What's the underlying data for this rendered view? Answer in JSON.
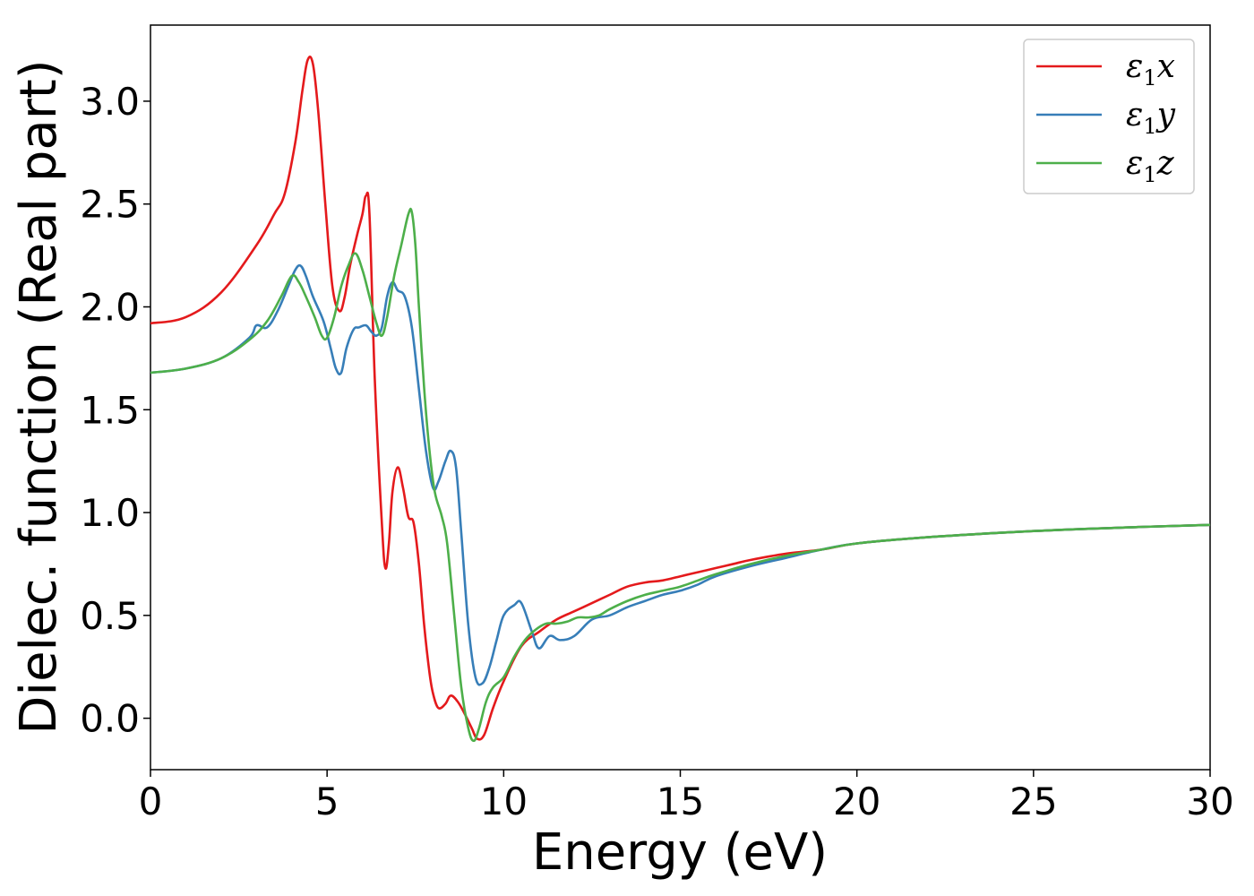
{
  "chart_data": {
    "type": "line",
    "title": "",
    "xlabel": "Energy (eV)",
    "ylabel": "Dielec. function (Real part)",
    "xlim": [
      0,
      30
    ],
    "ylim": [
      -0.25,
      3.37
    ],
    "xticks": [
      0,
      5,
      10,
      15,
      20,
      25,
      30
    ],
    "xtick_labels": [
      "0",
      "5",
      "10",
      "15",
      "20",
      "25",
      "30"
    ],
    "yticks": [
      0.0,
      0.5,
      1.0,
      1.5,
      2.0,
      2.5,
      3.0
    ],
    "ytick_labels": [
      "0.0",
      "0.5",
      "1.0",
      "1.5",
      "2.0",
      "2.5",
      "3.0"
    ],
    "grid": false,
    "legend_position": "top-right",
    "series": [
      {
        "name": "ε₁x",
        "legend": {
          "base": "ε",
          "sub": "1",
          "var": "x"
        },
        "color": "#e41a1c",
        "x": [
          0,
          1,
          2,
          3,
          3.5,
          3.8,
          4.1,
          4.3,
          4.45,
          4.6,
          4.75,
          4.95,
          5.15,
          5.35,
          5.5,
          5.65,
          5.85,
          6.0,
          6.1,
          6.2,
          6.35,
          6.55,
          6.65,
          6.75,
          6.85,
          7.0,
          7.15,
          7.3,
          7.45,
          7.6,
          7.75,
          7.9,
          8.0,
          8.15,
          8.35,
          8.5,
          8.7,
          8.9,
          9.1,
          9.25,
          9.45,
          9.7,
          10.0,
          10.5,
          11.0,
          11.5,
          12.0,
          12.5,
          13.0,
          13.5,
          14.0,
          14.5,
          15.0,
          15.5,
          16.0,
          16.5,
          17.0,
          18.0,
          19.0,
          20.0,
          22.0,
          25.0,
          28.0,
          30.0
        ],
        "y": [
          1.92,
          1.95,
          2.07,
          2.3,
          2.45,
          2.55,
          2.8,
          3.05,
          3.2,
          3.18,
          2.95,
          2.5,
          2.1,
          1.98,
          2.05,
          2.2,
          2.35,
          2.45,
          2.54,
          2.45,
          1.65,
          0.95,
          0.73,
          0.85,
          1.1,
          1.22,
          1.12,
          0.98,
          0.95,
          0.75,
          0.45,
          0.22,
          0.12,
          0.05,
          0.07,
          0.11,
          0.08,
          0.02,
          -0.05,
          -0.1,
          -0.08,
          0.05,
          0.18,
          0.35,
          0.42,
          0.48,
          0.52,
          0.56,
          0.6,
          0.64,
          0.66,
          0.67,
          0.69,
          0.71,
          0.73,
          0.75,
          0.77,
          0.8,
          0.82,
          0.85,
          0.88,
          0.91,
          0.93,
          0.94
        ]
      },
      {
        "name": "ε₁y",
        "legend": {
          "base": "ε",
          "sub": "1",
          "var": "y"
        },
        "color": "#377eb8",
        "x": [
          0,
          1,
          2,
          2.8,
          3.0,
          3.3,
          3.6,
          3.9,
          4.1,
          4.25,
          4.4,
          4.6,
          4.9,
          5.1,
          5.25,
          5.4,
          5.55,
          5.75,
          5.9,
          6.1,
          6.25,
          6.4,
          6.55,
          6.7,
          6.85,
          7.0,
          7.2,
          7.4,
          7.6,
          7.8,
          8.0,
          8.15,
          8.35,
          8.5,
          8.65,
          8.8,
          9.0,
          9.2,
          9.4,
          9.6,
          9.8,
          10.0,
          10.3,
          10.5,
          10.8,
          11.0,
          11.3,
          11.6,
          12.0,
          12.5,
          13.0,
          13.5,
          14.0,
          14.5,
          15.0,
          15.5,
          16.0,
          17.0,
          18.0,
          19.0,
          20.0,
          22.0,
          25.0,
          28.0,
          30.0
        ],
        "y": [
          1.68,
          1.7,
          1.75,
          1.85,
          1.91,
          1.9,
          1.98,
          2.1,
          2.18,
          2.2,
          2.15,
          2.05,
          1.93,
          1.8,
          1.7,
          1.68,
          1.8,
          1.89,
          1.9,
          1.91,
          1.88,
          1.86,
          1.9,
          2.05,
          2.12,
          2.08,
          2.05,
          1.9,
          1.6,
          1.3,
          1.12,
          1.15,
          1.25,
          1.3,
          1.22,
          0.9,
          0.45,
          0.2,
          0.17,
          0.25,
          0.38,
          0.5,
          0.55,
          0.56,
          0.42,
          0.34,
          0.4,
          0.38,
          0.4,
          0.48,
          0.5,
          0.54,
          0.57,
          0.6,
          0.62,
          0.65,
          0.69,
          0.74,
          0.78,
          0.82,
          0.85,
          0.88,
          0.91,
          0.93,
          0.94
        ]
      },
      {
        "name": "ε₁z",
        "legend": {
          "base": "ε",
          "sub": "1",
          "var": "z"
        },
        "color": "#4daf4a",
        "x": [
          0,
          1,
          2,
          2.8,
          3.3,
          3.7,
          4.0,
          4.2,
          4.4,
          4.65,
          4.85,
          5.0,
          5.2,
          5.4,
          5.6,
          5.8,
          6.0,
          6.2,
          6.4,
          6.55,
          6.7,
          6.9,
          7.1,
          7.3,
          7.4,
          7.5,
          7.6,
          7.75,
          7.9,
          8.05,
          8.25,
          8.4,
          8.6,
          8.8,
          9.0,
          9.15,
          9.3,
          9.5,
          9.7,
          10.0,
          10.3,
          10.6,
          10.9,
          11.2,
          11.5,
          11.8,
          12.1,
          12.4,
          12.7,
          13.0,
          13.5,
          14.0,
          14.5,
          15.0,
          15.5,
          16.0,
          17.0,
          18.0,
          19.0,
          20.0,
          22.0,
          25.0,
          28.0,
          30.0
        ],
        "y": [
          1.68,
          1.7,
          1.75,
          1.84,
          1.93,
          2.05,
          2.15,
          2.12,
          2.05,
          1.95,
          1.86,
          1.85,
          1.95,
          2.1,
          2.2,
          2.26,
          2.18,
          2.05,
          1.92,
          1.86,
          1.95,
          2.15,
          2.3,
          2.45,
          2.46,
          2.3,
          2.0,
          1.6,
          1.3,
          1.1,
          0.98,
          0.85,
          0.5,
          0.15,
          -0.05,
          -0.11,
          -0.05,
          0.08,
          0.15,
          0.2,
          0.3,
          0.38,
          0.43,
          0.46,
          0.46,
          0.47,
          0.49,
          0.49,
          0.5,
          0.53,
          0.57,
          0.6,
          0.62,
          0.64,
          0.67,
          0.7,
          0.75,
          0.79,
          0.82,
          0.85,
          0.88,
          0.91,
          0.93,
          0.94
        ]
      }
    ]
  }
}
